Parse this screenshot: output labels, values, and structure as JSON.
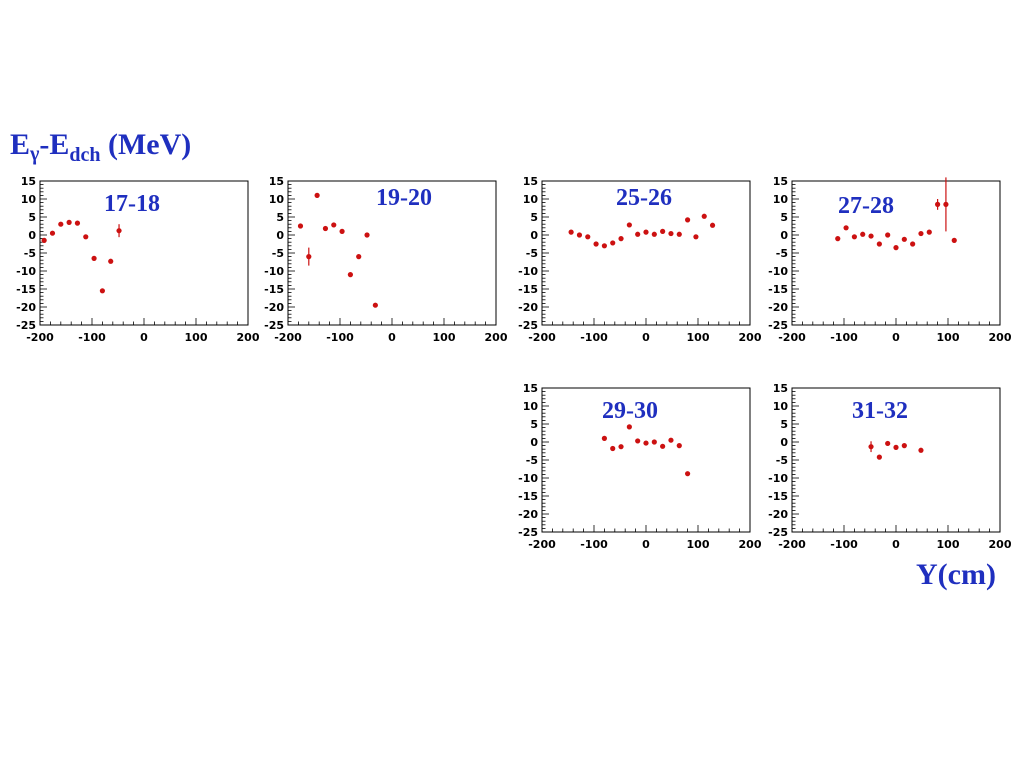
{
  "axis_label_y": {
    "main": "E",
    "sub1": "γ",
    "mid": "-E",
    "sub2": "dch",
    "unit": "(MeV)"
  },
  "axis_label_x": "Y(cm)",
  "colors": {
    "label": "#1f2fbf",
    "point": "#cc1111",
    "axis": "#000000"
  },
  "chart_data": [
    {
      "type": "scatter",
      "title": "17-18",
      "xlim": [
        -200,
        200
      ],
      "ylim": [
        -25,
        15
      ],
      "xticks": [
        -200,
        -100,
        0,
        100,
        200
      ],
      "yticks": [
        15,
        10,
        5,
        0,
        -5,
        -10,
        -15,
        -20,
        -25
      ],
      "points": [
        {
          "x": -192,
          "y": -1.5
        },
        {
          "x": -176,
          "y": 0.5
        },
        {
          "x": -160,
          "y": 3
        },
        {
          "x": -144,
          "y": 3.5
        },
        {
          "x": -128,
          "y": 3.3
        },
        {
          "x": -112,
          "y": -0.5
        },
        {
          "x": -96,
          "y": -6.5
        },
        {
          "x": -80,
          "y": -15.5
        },
        {
          "x": -64,
          "y": -7.3
        },
        {
          "x": -48,
          "y": 1.2,
          "err": 1.8
        }
      ]
    },
    {
      "type": "scatter",
      "title": "19-20",
      "xlim": [
        -200,
        200
      ],
      "ylim": [
        -25,
        15
      ],
      "xticks": [
        -200,
        -100,
        0,
        100,
        200
      ],
      "yticks": [
        15,
        10,
        5,
        0,
        -5,
        -10,
        -15,
        -20,
        -25
      ],
      "points": [
        {
          "x": -176,
          "y": 2.5
        },
        {
          "x": -160,
          "y": -6,
          "err": 2.5
        },
        {
          "x": -144,
          "y": 11
        },
        {
          "x": -128,
          "y": 1.8
        },
        {
          "x": -112,
          "y": 2.8
        },
        {
          "x": -96,
          "y": 1
        },
        {
          "x": -80,
          "y": -11
        },
        {
          "x": -64,
          "y": -6
        },
        {
          "x": -48,
          "y": 0
        },
        {
          "x": -32,
          "y": -19.5
        }
      ]
    },
    {
      "type": "scatter",
      "title": "25-26",
      "xlim": [
        -200,
        200
      ],
      "ylim": [
        -25,
        15
      ],
      "xticks": [
        -200,
        -100,
        0,
        100,
        200
      ],
      "yticks": [
        15,
        10,
        5,
        0,
        -5,
        -10,
        -15,
        -20,
        -25
      ],
      "points": [
        {
          "x": -144,
          "y": 0.8
        },
        {
          "x": -128,
          "y": 0
        },
        {
          "x": -112,
          "y": -0.5
        },
        {
          "x": -96,
          "y": -2.5
        },
        {
          "x": -80,
          "y": -3
        },
        {
          "x": -64,
          "y": -2.2
        },
        {
          "x": -48,
          "y": -1
        },
        {
          "x": -32,
          "y": 2.8
        },
        {
          "x": -16,
          "y": 0.2
        },
        {
          "x": 0,
          "y": 0.8
        },
        {
          "x": 16,
          "y": 0.2
        },
        {
          "x": 32,
          "y": 1
        },
        {
          "x": 48,
          "y": 0.4
        },
        {
          "x": 64,
          "y": 0.2
        },
        {
          "x": 80,
          "y": 4.2
        },
        {
          "x": 96,
          "y": -0.5
        },
        {
          "x": 112,
          "y": 5.2
        },
        {
          "x": 128,
          "y": 2.7
        }
      ]
    },
    {
      "type": "scatter",
      "title": "27-28",
      "xlim": [
        -200,
        200
      ],
      "ylim": [
        -25,
        15
      ],
      "xticks": [
        -200,
        -100,
        0,
        100,
        200
      ],
      "yticks": [
        15,
        10,
        5,
        0,
        -5,
        -10,
        -15,
        -20,
        -25
      ],
      "points": [
        {
          "x": -112,
          "y": -1
        },
        {
          "x": -96,
          "y": 2
        },
        {
          "x": -80,
          "y": -0.5
        },
        {
          "x": -64,
          "y": 0.2
        },
        {
          "x": -48,
          "y": -0.3
        },
        {
          "x": -32,
          "y": -2.5
        },
        {
          "x": -16,
          "y": 0
        },
        {
          "x": 0,
          "y": -3.5
        },
        {
          "x": 16,
          "y": -1.2
        },
        {
          "x": 32,
          "y": -2.5
        },
        {
          "x": 48,
          "y": 0.4
        },
        {
          "x": 64,
          "y": 0.8
        },
        {
          "x": 80,
          "y": 8.5,
          "err": 1.5
        },
        {
          "x": 96,
          "y": 8.5,
          "err": 7.5
        },
        {
          "x": 112,
          "y": -1.5
        }
      ]
    },
    {
      "type": "scatter",
      "title": "29-30",
      "xlim": [
        -200,
        200
      ],
      "ylim": [
        -25,
        15
      ],
      "xticks": [
        -200,
        -100,
        0,
        100,
        200
      ],
      "yticks": [
        15,
        10,
        5,
        0,
        -5,
        -10,
        -15,
        -20,
        -25
      ],
      "points": [
        {
          "x": -80,
          "y": 1
        },
        {
          "x": -64,
          "y": -1.8
        },
        {
          "x": -48,
          "y": -1.3
        },
        {
          "x": -32,
          "y": 4.2
        },
        {
          "x": -16,
          "y": 0.3
        },
        {
          "x": 0,
          "y": -0.3
        },
        {
          "x": 16,
          "y": 0
        },
        {
          "x": 32,
          "y": -1.2
        },
        {
          "x": 48,
          "y": 0.5
        },
        {
          "x": 64,
          "y": -1
        },
        {
          "x": 80,
          "y": -8.8
        }
      ]
    },
    {
      "type": "scatter",
      "title": "31-32",
      "xlim": [
        -200,
        200
      ],
      "ylim": [
        -25,
        15
      ],
      "xticks": [
        -200,
        -100,
        0,
        100,
        200
      ],
      "yticks": [
        15,
        10,
        5,
        0,
        -5,
        -10,
        -15,
        -20,
        -25
      ],
      "points": [
        {
          "x": -48,
          "y": -1.3,
          "err": 1.5
        },
        {
          "x": -32,
          "y": -4.2
        },
        {
          "x": -16,
          "y": -0.4
        },
        {
          "x": 0,
          "y": -1.5
        },
        {
          "x": 16,
          "y": -1
        },
        {
          "x": 48,
          "y": -2.3
        }
      ]
    }
  ]
}
